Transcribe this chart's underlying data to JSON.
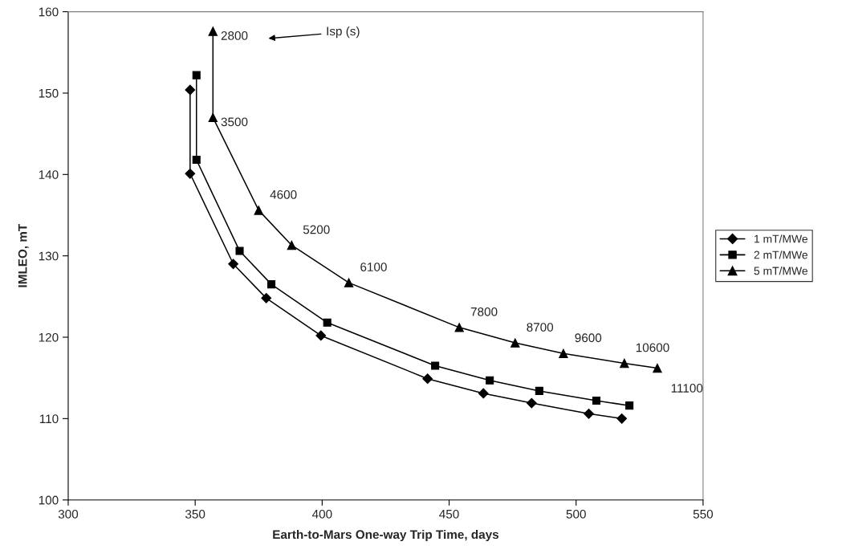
{
  "chart_data": {
    "type": "line",
    "xlabel": "Earth-to-Mars One-way Trip Time, days",
    "ylabel": "IMLEO, mT",
    "xlim": [
      300,
      550
    ],
    "xticks": [
      300,
      350,
      400,
      450,
      500,
      550
    ],
    "ylim": [
      100,
      160
    ],
    "yticks": [
      100,
      110,
      120,
      130,
      140,
      150,
      160
    ],
    "grid": false,
    "legend": "right",
    "series": [
      {
        "name": "1 mT/MWe",
        "color": "#000000",
        "marker": "diamond",
        "x": [
          348,
          348,
          365,
          378,
          399.5,
          441.5,
          463.5,
          482.5,
          505,
          518
        ],
        "values": [
          150.4,
          140.1,
          129.0,
          124.8,
          120.2,
          114.9,
          113.1,
          111.9,
          110.6,
          110.0
        ]
      },
      {
        "name": "2 mT/MWe",
        "color": "#000000",
        "marker": "square",
        "x": [
          350.5,
          350.5,
          367.5,
          380,
          402,
          444.5,
          466,
          485.5,
          508,
          521
        ],
        "values": [
          152.2,
          141.8,
          130.6,
          126.5,
          121.8,
          116.5,
          114.7,
          113.4,
          112.2,
          111.6
        ]
      },
      {
        "name": "5 mT/MWe",
        "color": "#000000",
        "marker": "triangle",
        "x": [
          357,
          357,
          375,
          388,
          410.5,
          454,
          476,
          495,
          519,
          532
        ],
        "values": [
          157.6,
          147.0,
          135.6,
          131.3,
          126.7,
          121.2,
          119.3,
          118.0,
          116.8,
          116.2
        ]
      }
    ],
    "annotations": [
      {
        "text": "2800",
        "x": 357,
        "y": 157.6
      },
      {
        "text": "3500",
        "x": 357,
        "y": 147.0
      },
      {
        "text": "4600",
        "x": 375,
        "y": 135.6
      },
      {
        "text": "5200",
        "x": 388,
        "y": 131.3
      },
      {
        "text": "6100",
        "x": 410.5,
        "y": 126.7
      },
      {
        "text": "7800",
        "x": 454,
        "y": 121.2
      },
      {
        "text": "8700",
        "x": 476,
        "y": 119.3
      },
      {
        "text": "9600",
        "x": 495,
        "y": 118.0
      },
      {
        "text": "10600",
        "x": 519,
        "y": 116.8
      },
      {
        "text": "11100",
        "x": 532,
        "y": 116.2
      },
      "Isp (s)"
    ]
  }
}
